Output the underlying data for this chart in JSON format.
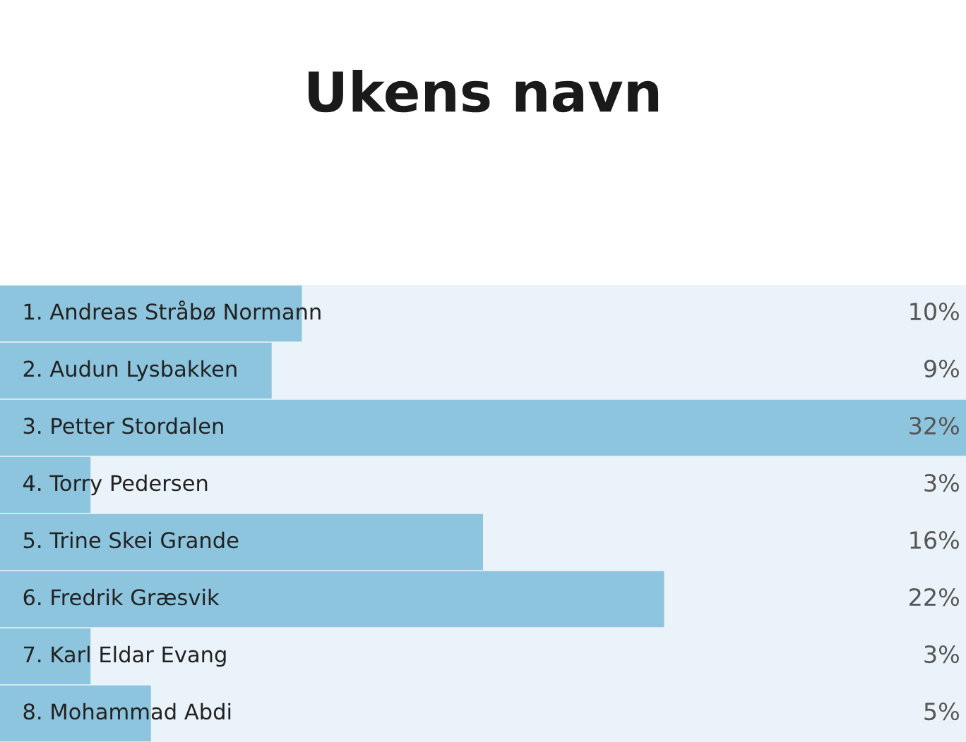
{
  "chart_data": {
    "type": "bar",
    "orientation": "horizontal",
    "title": "Ukens navn",
    "categories": [
      "1. Andreas Stråbø Normann",
      "2. Audun Lysbakken",
      "3. Petter Stordalen",
      "4. Torry Pedersen",
      "5. Trine Skei Grande",
      "6. Fredrik Græsvik",
      "7. Karl Eldar Evang",
      "8. Mohammad Abdi"
    ],
    "values": [
      10,
      9,
      32,
      3,
      16,
      22,
      3,
      5
    ],
    "value_labels": [
      "10%",
      "9%",
      "32%",
      "3%",
      "16%",
      "22%",
      "3%",
      "5%"
    ],
    "color": "#8ec5de",
    "xlim": [
      0,
      32
    ]
  }
}
